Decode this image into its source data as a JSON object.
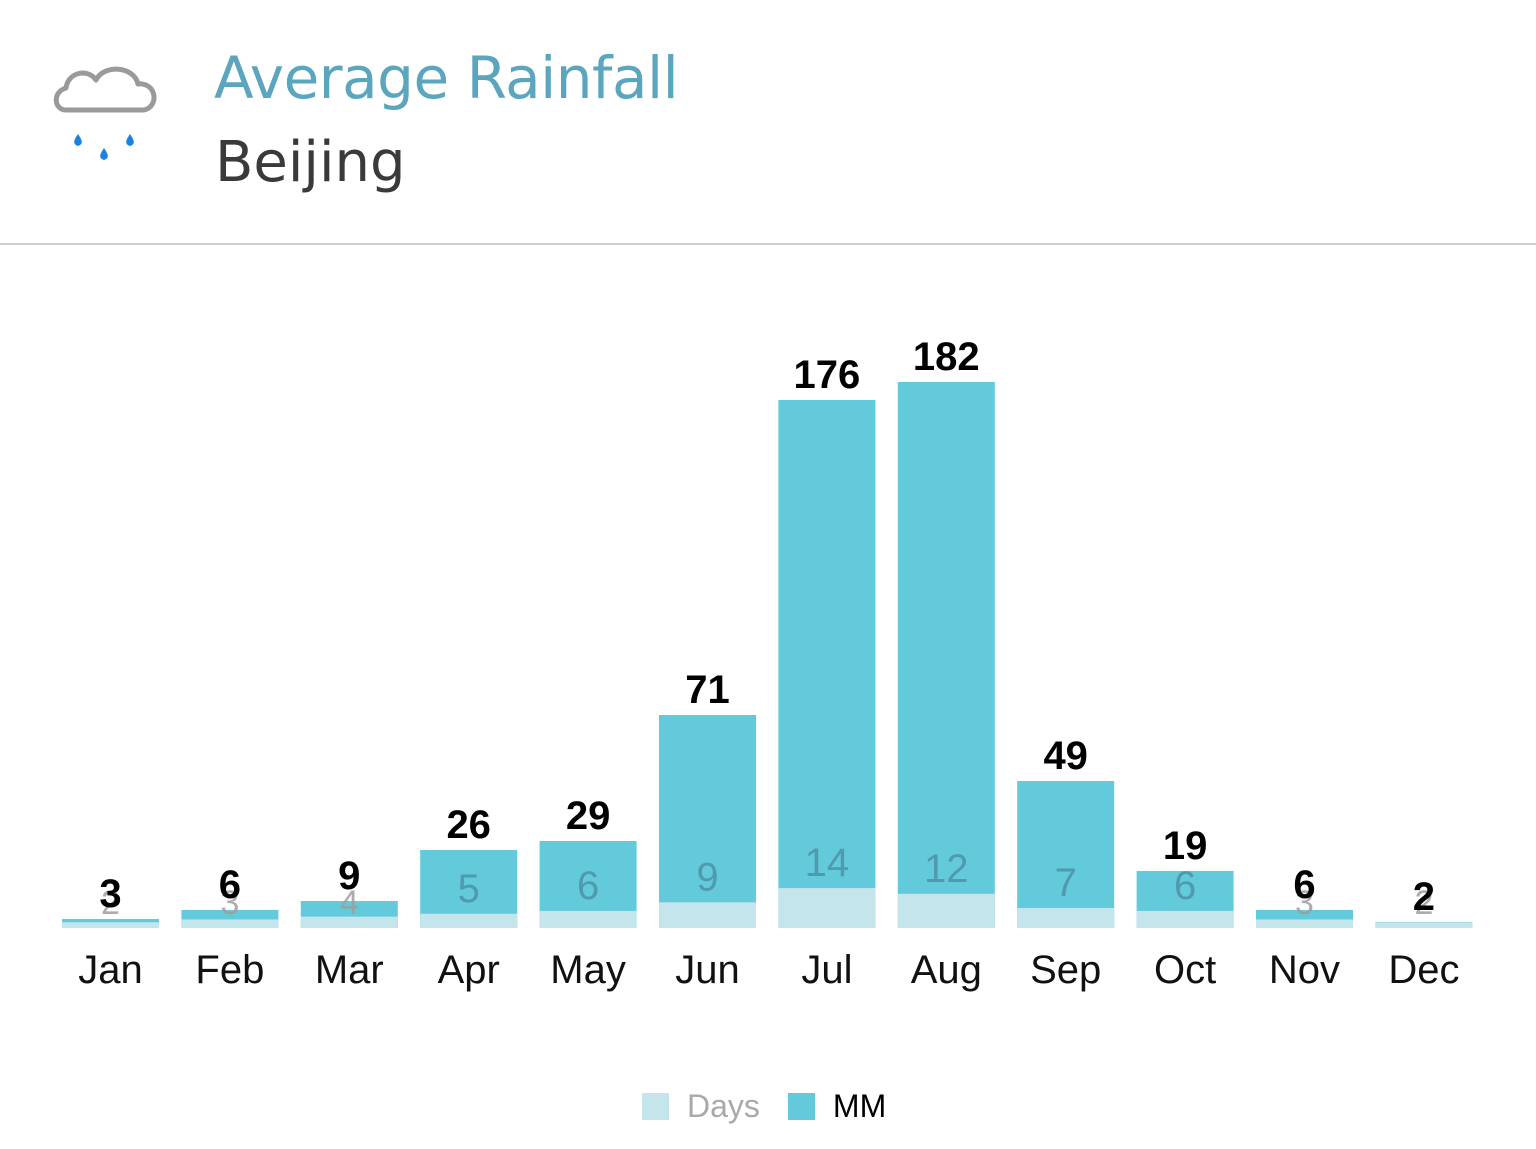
{
  "header": {
    "icon": "rain-cloud-icon",
    "title": "Average Rainfall",
    "subtitle": "Beijing"
  },
  "colors": {
    "title": "#5ba6be",
    "subtitle": "#3a3a3a",
    "mm_bar": "#62cadb",
    "days_bar": "#c4e5ec",
    "days_label": "#4f9aad",
    "days_label_small": "#9e9e9e",
    "value_label": "#000000",
    "legend_days_text": "#a9a9a9",
    "legend_mm_text": "#000000",
    "raindrop": "#1a82e2",
    "cloud_outline": "#9a9a9a"
  },
  "chart_data": {
    "type": "bar",
    "categories": [
      "Jan",
      "Feb",
      "Mar",
      "Apr",
      "May",
      "Jun",
      "Jul",
      "Aug",
      "Sep",
      "Oct",
      "Nov",
      "Dec"
    ],
    "series": [
      {
        "name": "Days",
        "values": [
          2,
          3,
          4,
          5,
          6,
          9,
          14,
          12,
          7,
          6,
          3,
          2
        ]
      },
      {
        "name": "MM",
        "values": [
          3,
          6,
          9,
          26,
          29,
          71,
          176,
          182,
          49,
          19,
          6,
          2
        ]
      }
    ],
    "overlap": true,
    "legend_position": "bottom-center",
    "grid": false,
    "y_axis_shown": false
  }
}
